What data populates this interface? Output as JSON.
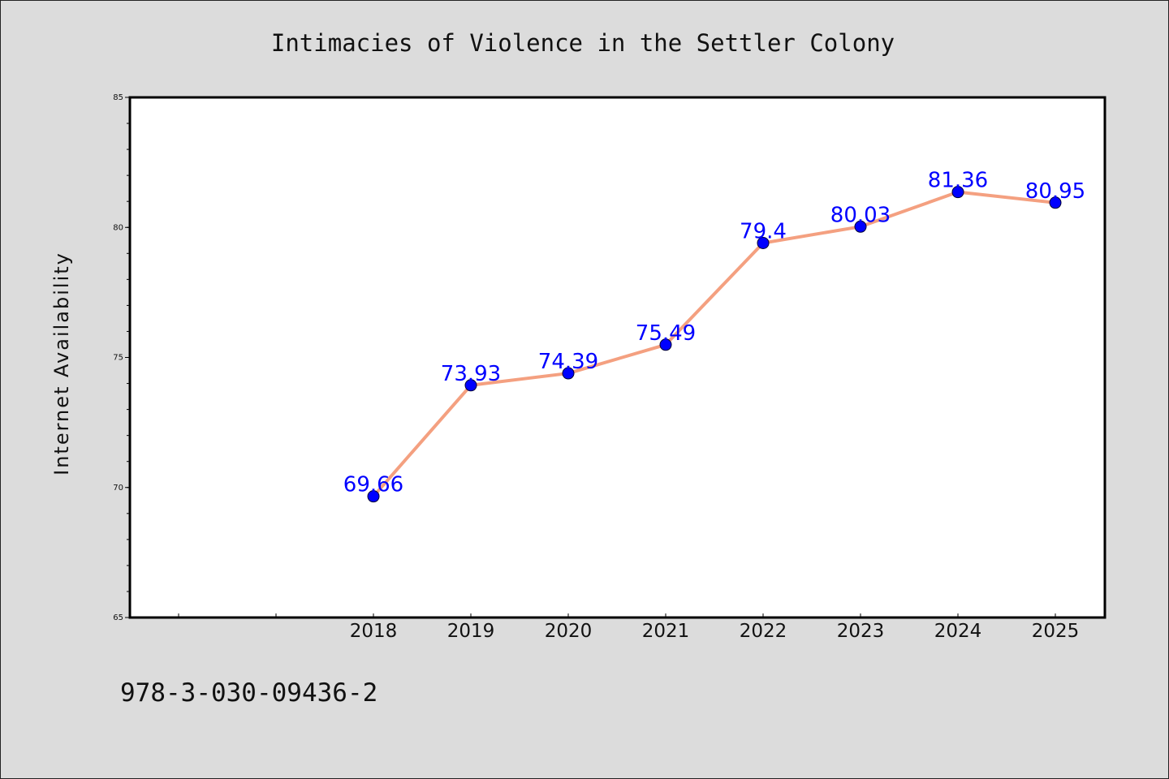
{
  "chart_data": {
    "type": "line",
    "title": "Intimacies of Violence in the Settler Colony",
    "xlabel": "",
    "ylabel": "Internet Availability",
    "x": [
      "2018",
      "2019",
      "2020",
      "2021",
      "2022",
      "2023",
      "2024",
      "2025"
    ],
    "series": [
      {
        "values": [
          69.66,
          73.93,
          74.39,
          75.49,
          79.4,
          80.03,
          81.36,
          80.95
        ],
        "labels": [
          "69.66",
          "73.93",
          "74.39",
          "75.49",
          "79.4",
          "80.03",
          "81.36",
          "80.95"
        ],
        "line_color": "#f4a080",
        "marker_color": "#0000ff"
      }
    ],
    "ylim": [
      65,
      85
    ],
    "yticks": [
      "65",
      "70",
      "75",
      "80",
      "85"
    ],
    "grid": false,
    "legend": false
  },
  "footer": {
    "isbn": "978-3-030-09436-2"
  }
}
